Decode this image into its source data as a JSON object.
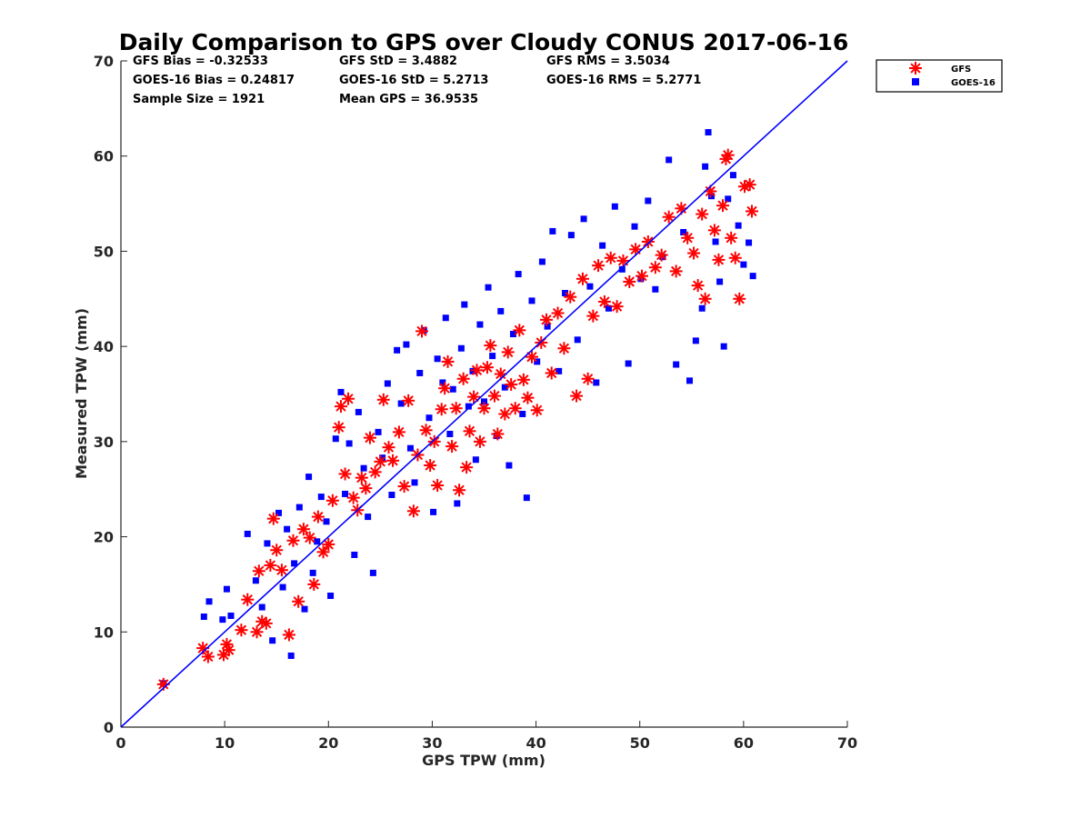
{
  "chart_data": {
    "type": "scatter",
    "title": "Daily Comparison to GPS over Cloudy CONUS 2017-06-16",
    "xlabel": "GPS TPW (mm)",
    "ylabel": "Measured TPW (mm)",
    "xlim": [
      0,
      70
    ],
    "ylim": [
      0,
      70
    ],
    "xticks": [
      "0",
      "10",
      "20",
      "30",
      "40",
      "50",
      "60",
      "70"
    ],
    "yticks": [
      "0",
      "10",
      "20",
      "30",
      "40",
      "50",
      "60",
      "70"
    ],
    "grid": false,
    "legend_position": "outside top-right",
    "reference_line": {
      "name": "1:1 line",
      "x": [
        0,
        70
      ],
      "y": [
        0,
        70
      ],
      "color": "#0000ff"
    },
    "stats": {
      "gfs_bias": "GFS Bias = -0.32533",
      "gfs_std": "GFS StD = 3.4882",
      "gfs_rms": "GFS RMS = 3.5034",
      "goes_bias": "GOES-16 Bias = 0.24817",
      "goes_std": "GOES-16 StD = 5.2713",
      "goes_rms": "GOES-16 RMS = 5.2771",
      "sample_size": "Sample Size = 1921",
      "mean_gps": "Mean GPS = 36.9535"
    },
    "series": [
      {
        "name": "GFS",
        "marker": "asterisk",
        "color": "#ff0000",
        "points": [
          [
            4.1,
            4.5
          ],
          [
            7.9,
            8.3
          ],
          [
            8.4,
            7.4
          ],
          [
            9.9,
            7.6
          ],
          [
            10.2,
            8.7
          ],
          [
            10.4,
            8.1
          ],
          [
            11.6,
            10.2
          ],
          [
            12.2,
            13.4
          ],
          [
            13.1,
            10.0
          ],
          [
            13.3,
            16.4
          ],
          [
            13.6,
            11.1
          ],
          [
            14.0,
            10.9
          ],
          [
            14.4,
            17.0
          ],
          [
            14.7,
            21.9
          ],
          [
            15.0,
            18.6
          ],
          [
            15.5,
            16.5
          ],
          [
            16.2,
            9.7
          ],
          [
            16.6,
            19.6
          ],
          [
            17.1,
            13.2
          ],
          [
            17.6,
            20.8
          ],
          [
            18.2,
            19.9
          ],
          [
            18.6,
            15.0
          ],
          [
            19.0,
            22.1
          ],
          [
            19.5,
            18.4
          ],
          [
            20.0,
            19.2
          ],
          [
            20.4,
            23.8
          ],
          [
            21.0,
            31.5
          ],
          [
            21.2,
            33.7
          ],
          [
            21.6,
            26.6
          ],
          [
            21.9,
            34.5
          ],
          [
            22.4,
            24.1
          ],
          [
            22.8,
            22.8
          ],
          [
            23.2,
            26.2
          ],
          [
            23.6,
            25.1
          ],
          [
            24.0,
            30.4
          ],
          [
            24.5,
            26.8
          ],
          [
            25.0,
            27.9
          ],
          [
            25.3,
            34.4
          ],
          [
            25.8,
            29.4
          ],
          [
            26.2,
            28.0
          ],
          [
            26.8,
            31.0
          ],
          [
            27.3,
            25.3
          ],
          [
            27.7,
            34.3
          ],
          [
            28.2,
            22.7
          ],
          [
            28.6,
            28.6
          ],
          [
            29.0,
            41.6
          ],
          [
            29.4,
            31.2
          ],
          [
            29.8,
            27.5
          ],
          [
            30.2,
            30.0
          ],
          [
            30.5,
            25.4
          ],
          [
            30.9,
            33.4
          ],
          [
            31.2,
            35.6
          ],
          [
            31.5,
            38.4
          ],
          [
            31.9,
            29.5
          ],
          [
            32.3,
            33.5
          ],
          [
            32.6,
            24.9
          ],
          [
            33.0,
            36.6
          ],
          [
            33.3,
            27.3
          ],
          [
            33.6,
            31.1
          ],
          [
            34.0,
            34.7
          ],
          [
            34.3,
            37.5
          ],
          [
            34.6,
            30.0
          ],
          [
            35.0,
            33.5
          ],
          [
            35.3,
            37.8
          ],
          [
            35.6,
            40.1
          ],
          [
            36.0,
            34.8
          ],
          [
            36.3,
            30.8
          ],
          [
            36.6,
            37.1
          ],
          [
            37.0,
            32.9
          ],
          [
            37.3,
            39.4
          ],
          [
            37.6,
            36.0
          ],
          [
            38.0,
            33.5
          ],
          [
            38.4,
            41.7
          ],
          [
            38.8,
            36.5
          ],
          [
            39.2,
            34.6
          ],
          [
            39.6,
            38.9
          ],
          [
            40.1,
            33.3
          ],
          [
            40.5,
            40.4
          ],
          [
            41.0,
            42.8
          ],
          [
            41.5,
            37.2
          ],
          [
            42.1,
            43.5
          ],
          [
            42.7,
            39.8
          ],
          [
            43.3,
            45.2
          ],
          [
            43.9,
            34.8
          ],
          [
            44.5,
            47.1
          ],
          [
            45.0,
            36.6
          ],
          [
            45.5,
            43.2
          ],
          [
            46.0,
            48.5
          ],
          [
            46.6,
            44.7
          ],
          [
            47.2,
            49.3
          ],
          [
            47.8,
            44.2
          ],
          [
            48.4,
            49.0
          ],
          [
            49.0,
            46.8
          ],
          [
            49.6,
            50.2
          ],
          [
            50.2,
            47.4
          ],
          [
            50.8,
            51.0
          ],
          [
            51.5,
            48.3
          ],
          [
            52.1,
            49.6
          ],
          [
            52.8,
            53.6
          ],
          [
            53.5,
            47.9
          ],
          [
            54.0,
            54.5
          ],
          [
            54.6,
            51.4
          ],
          [
            55.2,
            49.8
          ],
          [
            55.6,
            46.4
          ],
          [
            56.0,
            53.9
          ],
          [
            56.3,
            45.0
          ],
          [
            56.8,
            56.3
          ],
          [
            57.2,
            52.2
          ],
          [
            57.6,
            49.1
          ],
          [
            58.0,
            54.8
          ],
          [
            58.3,
            59.7
          ],
          [
            58.5,
            60.1
          ],
          [
            58.8,
            51.4
          ],
          [
            59.2,
            49.3
          ],
          [
            59.6,
            45.0
          ],
          [
            60.1,
            56.8
          ],
          [
            60.6,
            57.0
          ],
          [
            60.8,
            54.2
          ]
        ]
      },
      {
        "name": "GOES-16",
        "marker": "square",
        "color": "#0000ff",
        "points": [
          [
            4.1,
            4.6
          ],
          [
            8.0,
            11.6
          ],
          [
            8.5,
            13.2
          ],
          [
            9.8,
            11.3
          ],
          [
            10.2,
            14.5
          ],
          [
            10.6,
            11.7
          ],
          [
            12.2,
            20.3
          ],
          [
            13.0,
            15.4
          ],
          [
            13.6,
            12.6
          ],
          [
            14.1,
            19.3
          ],
          [
            14.6,
            9.1
          ],
          [
            15.2,
            22.5
          ],
          [
            15.6,
            14.7
          ],
          [
            16.0,
            20.8
          ],
          [
            16.4,
            7.5
          ],
          [
            16.7,
            17.2
          ],
          [
            17.2,
            23.1
          ],
          [
            17.7,
            12.4
          ],
          [
            18.1,
            26.3
          ],
          [
            18.5,
            16.2
          ],
          [
            18.9,
            19.5
          ],
          [
            19.3,
            24.2
          ],
          [
            19.8,
            21.6
          ],
          [
            20.2,
            13.8
          ],
          [
            20.7,
            30.3
          ],
          [
            21.2,
            35.2
          ],
          [
            21.6,
            24.5
          ],
          [
            22.0,
            29.8
          ],
          [
            22.5,
            18.1
          ],
          [
            22.9,
            33.1
          ],
          [
            23.4,
            27.2
          ],
          [
            23.8,
            22.1
          ],
          [
            24.3,
            16.2
          ],
          [
            24.8,
            31.0
          ],
          [
            25.2,
            28.3
          ],
          [
            25.7,
            36.1
          ],
          [
            26.1,
            24.4
          ],
          [
            26.6,
            39.6
          ],
          [
            27.0,
            34.0
          ],
          [
            27.5,
            40.2
          ],
          [
            27.9,
            29.3
          ],
          [
            28.3,
            25.7
          ],
          [
            28.8,
            37.2
          ],
          [
            29.2,
            41.7
          ],
          [
            29.7,
            32.5
          ],
          [
            30.1,
            22.6
          ],
          [
            30.5,
            38.7
          ],
          [
            31.0,
            36.2
          ],
          [
            31.3,
            43.0
          ],
          [
            31.7,
            30.8
          ],
          [
            32.0,
            35.5
          ],
          [
            32.4,
            23.5
          ],
          [
            32.8,
            39.8
          ],
          [
            33.1,
            44.4
          ],
          [
            33.5,
            33.7
          ],
          [
            33.9,
            37.4
          ],
          [
            34.2,
            28.1
          ],
          [
            34.6,
            42.3
          ],
          [
            35.0,
            34.2
          ],
          [
            35.4,
            46.2
          ],
          [
            35.8,
            39.0
          ],
          [
            36.2,
            30.6
          ],
          [
            36.6,
            43.7
          ],
          [
            37.0,
            35.7
          ],
          [
            37.4,
            27.5
          ],
          [
            37.8,
            41.3
          ],
          [
            38.3,
            47.6
          ],
          [
            38.7,
            32.9
          ],
          [
            39.1,
            24.1
          ],
          [
            39.6,
            44.8
          ],
          [
            40.1,
            38.4
          ],
          [
            40.6,
            48.9
          ],
          [
            41.1,
            42.1
          ],
          [
            41.6,
            52.1
          ],
          [
            42.2,
            37.4
          ],
          [
            42.8,
            45.6
          ],
          [
            43.4,
            51.7
          ],
          [
            44.0,
            40.7
          ],
          [
            44.6,
            53.4
          ],
          [
            45.2,
            46.3
          ],
          [
            45.8,
            36.2
          ],
          [
            46.4,
            50.6
          ],
          [
            47.0,
            44.0
          ],
          [
            47.6,
            54.7
          ],
          [
            48.3,
            48.1
          ],
          [
            48.9,
            38.2
          ],
          [
            49.5,
            52.6
          ],
          [
            50.1,
            47.1
          ],
          [
            50.8,
            55.3
          ],
          [
            51.5,
            46.0
          ],
          [
            52.2,
            49.4
          ],
          [
            52.8,
            59.6
          ],
          [
            53.5,
            38.1
          ],
          [
            54.2,
            52.0
          ],
          [
            54.8,
            36.4
          ],
          [
            55.4,
            40.6
          ],
          [
            56.0,
            44.0
          ],
          [
            56.3,
            58.9
          ],
          [
            56.6,
            62.5
          ],
          [
            56.9,
            55.8
          ],
          [
            57.3,
            51.0
          ],
          [
            57.7,
            46.8
          ],
          [
            58.1,
            40.0
          ],
          [
            58.5,
            55.5
          ],
          [
            59.0,
            58.0
          ],
          [
            59.5,
            52.7
          ],
          [
            60.0,
            48.6
          ],
          [
            60.5,
            50.9
          ],
          [
            60.9,
            47.4
          ]
        ]
      }
    ]
  }
}
